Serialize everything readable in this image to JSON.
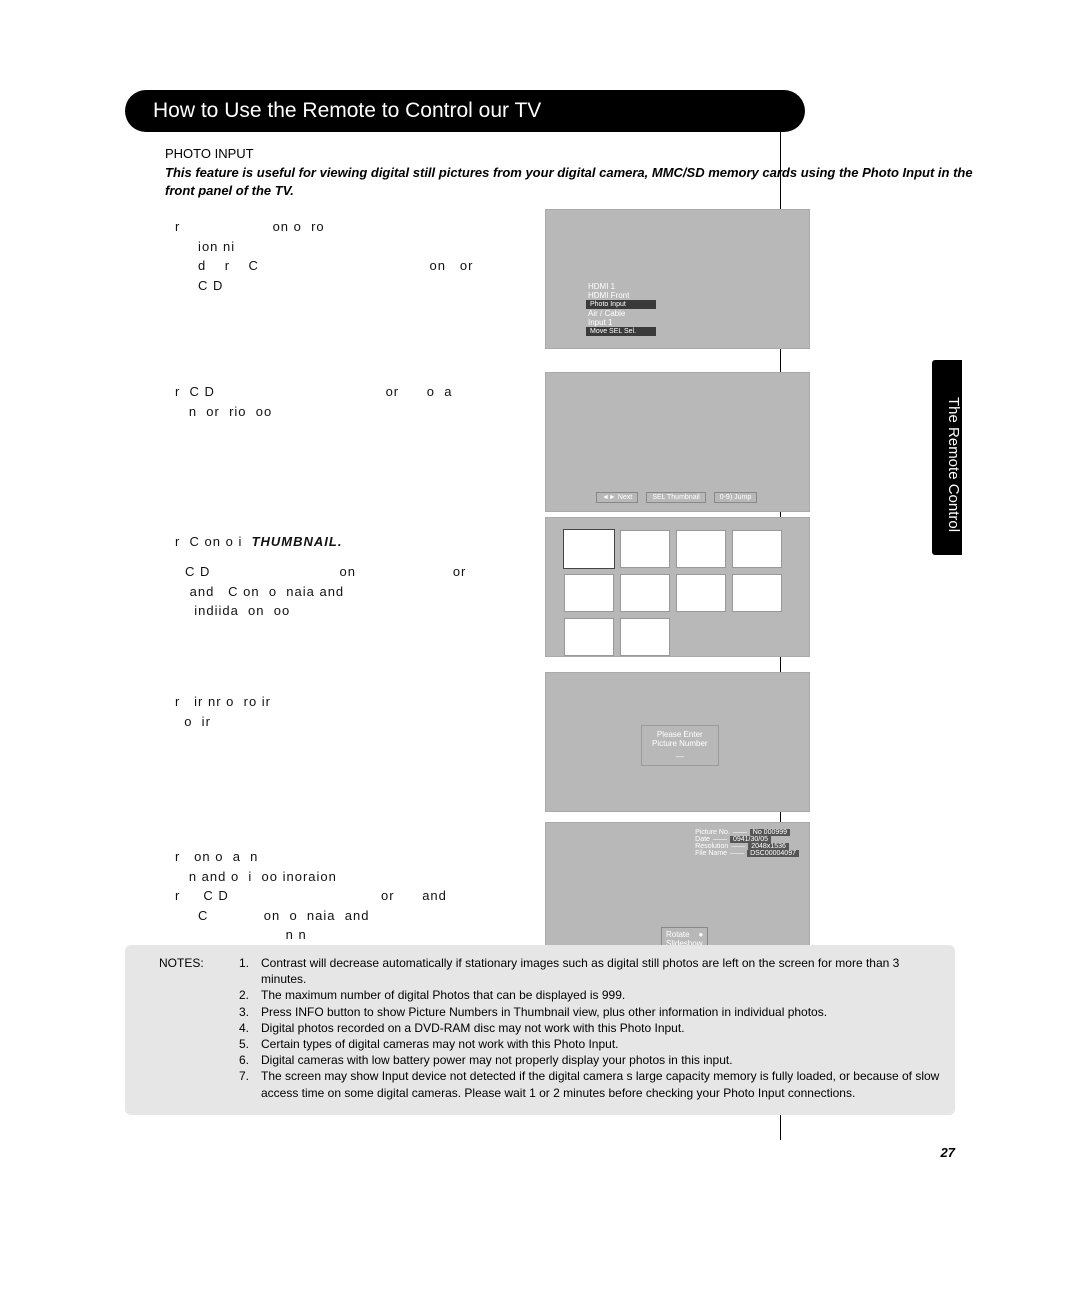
{
  "title": "How to Use the Remote to Control  our TV",
  "photo_input_label": "PHOTO INPUT",
  "intro": "This feature is useful for viewing digital still pictures from your digital camera, MMC/SD memory cards using the Photo Input in the front panel of the TV.",
  "steps": {
    "s1": "r                    on o  ro\n     ion ni  \n     d    r    C                                     on   or\n     C D",
    "s2": "r  C D                                     or      o  a\n   n  or  rio  oo",
    "s3a": "r  C on o i  THUMBNAIL.",
    "s3b": "C D                            on                     or\n and   C on  o  naia and\n  indiida  on  oo",
    "s4": "r   ir nr o  ro ir\n  o  ir",
    "s5": "r   on o  a  n\n   n and o  i  oo inoraion\nr     C D                                 or      and\n     C            on  o  naia  and\n                        n n"
  },
  "screen1": {
    "items": [
      "HDMI 1",
      "HDMI Front",
      "Photo Input",
      "Air / Cable",
      "Input 1"
    ],
    "footer": "  Move      SEL  Sel."
  },
  "screen2": {
    "footer_next": "Next",
    "footer_thumb": "SEL   Thumbnail",
    "footer_jump": "0-9) Jump"
  },
  "screen4": {
    "line1": "Please Enter",
    "line2": "Picture Number"
  },
  "screen5": {
    "labels": [
      "Picture No.",
      "Date",
      "Resolution",
      "File Name"
    ],
    "values": [
      "No  000999",
      "0941/30/05",
      "2048x1536",
      "DSC00004097"
    ],
    "rotate": "Rotate",
    "slideshow": "Slideshow"
  },
  "notes_label": "NOTES:",
  "notes": [
    "Contrast will decrease automatically if stationary images such as digital still photos are left on the screen for more than 3 minutes.",
    "The maximum number of digital Photos that can be displayed is 999.",
    "Press INFO button to show Picture Numbers in Thumbnail view, plus other information in individual photos.",
    "Digital photos recorded on a DVD-RAM disc may not work with this Photo Input.",
    "Certain types of digital cameras may not work with this Photo Input.",
    "Digital cameras with low battery power may not properly display your photos in this input.",
    "The screen may show  Input device not detected  if the digital camera s large capacity memory is fully loaded, or because of slow access time on some digital cameras.  Please wait 1 or 2 minutes before checking your Photo Input connections."
  ],
  "side_tab": "The Remote Control",
  "page_number": "27"
}
